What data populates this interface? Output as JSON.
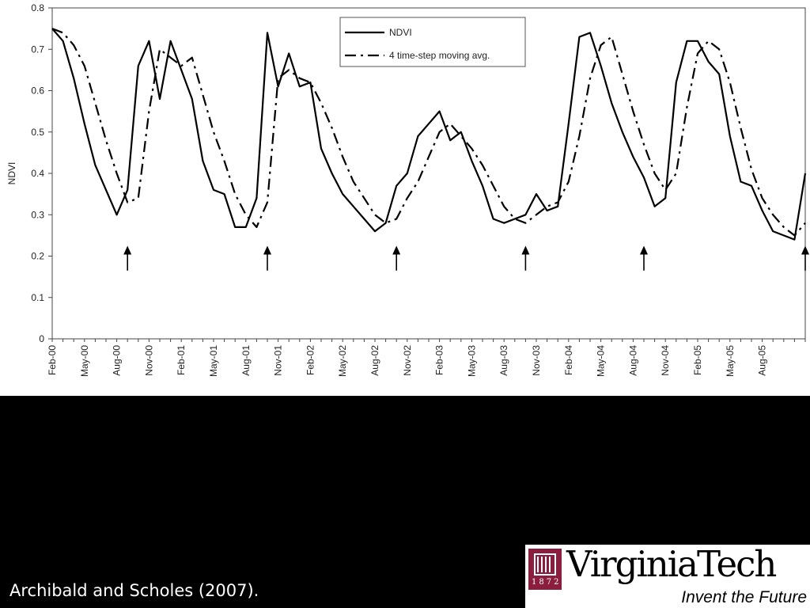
{
  "chart_data": {
    "type": "line",
    "ylabel": "NDVI",
    "ylim": [
      0,
      0.8
    ],
    "y_ticks": [
      "0",
      "0.1",
      "0.2",
      "0.3",
      "0.4",
      "0.5",
      "0.6",
      "0.7",
      "0.8"
    ],
    "x_tick_labels": [
      "Feb-00",
      "May-00",
      "Aug-00",
      "Nov-00",
      "Feb-01",
      "May-01",
      "Aug-01",
      "Nov-01",
      "Feb-02",
      "May-02",
      "Aug-02",
      "Nov-02",
      "Feb-03",
      "May-03",
      "Aug-03",
      "Nov-03",
      "Feb-04",
      "May-04",
      "Aug-04",
      "Nov-04",
      "Feb-05",
      "May-05",
      "Aug-05"
    ],
    "x_dates": [
      "2000-02",
      "2000-03",
      "2000-04",
      "2000-05",
      "2000-06",
      "2000-07",
      "2000-08",
      "2000-09",
      "2000-10",
      "2000-11",
      "2000-12",
      "2001-01",
      "2001-02",
      "2001-03",
      "2001-04",
      "2001-05",
      "2001-06",
      "2001-07",
      "2001-08",
      "2001-09",
      "2001-10",
      "2001-11",
      "2001-12",
      "2002-01",
      "2002-02",
      "2002-03",
      "2002-04",
      "2002-05",
      "2002-06",
      "2002-07",
      "2002-08",
      "2002-09",
      "2002-10",
      "2002-11",
      "2002-12",
      "2003-01",
      "2003-02",
      "2003-03",
      "2003-04",
      "2003-05",
      "2003-06",
      "2003-07",
      "2003-08",
      "2003-09",
      "2003-10",
      "2003-11",
      "2003-12",
      "2004-01",
      "2004-02",
      "2004-03",
      "2004-04",
      "2004-05",
      "2004-06",
      "2004-07",
      "2004-08",
      "2004-09",
      "2004-10",
      "2004-11",
      "2004-12",
      "2005-01",
      "2005-02",
      "2005-03",
      "2005-04",
      "2005-05",
      "2005-06",
      "2005-07",
      "2005-08",
      "2005-09",
      "2005-10",
      "2005-11",
      "2005-12"
    ],
    "series": [
      {
        "name": "NDVI",
        "style": "solid",
        "values": [
          0.75,
          0.72,
          0.63,
          0.52,
          0.42,
          0.36,
          0.3,
          0.36,
          0.66,
          0.72,
          0.58,
          0.72,
          0.65,
          0.58,
          0.43,
          0.36,
          0.35,
          0.27,
          0.27,
          0.34,
          0.74,
          0.61,
          0.69,
          0.61,
          0.62,
          0.46,
          0.4,
          0.35,
          0.32,
          0.29,
          0.26,
          0.28,
          0.37,
          0.4,
          0.49,
          0.52,
          0.55,
          0.48,
          0.5,
          0.43,
          0.37,
          0.29,
          0.28,
          0.29,
          0.3,
          0.35,
          0.31,
          0.32,
          0.52,
          0.73,
          0.74,
          0.66,
          0.57,
          0.5,
          0.44,
          0.39,
          0.32,
          0.34,
          0.62,
          0.72,
          0.72,
          0.67,
          0.64,
          0.49,
          0.38,
          0.37,
          0.31,
          0.26,
          0.25,
          0.24,
          0.4
        ]
      },
      {
        "name": "4 time-step moving avg.",
        "style": "dashdot",
        "values": [
          0.75,
          0.74,
          0.71,
          0.66,
          0.57,
          0.48,
          0.4,
          0.33,
          0.34,
          0.55,
          0.7,
          0.68,
          0.66,
          0.68,
          0.59,
          0.5,
          0.43,
          0.35,
          0.3,
          0.27,
          0.33,
          0.63,
          0.65,
          0.63,
          0.62,
          0.57,
          0.51,
          0.44,
          0.38,
          0.34,
          0.3,
          0.28,
          0.29,
          0.34,
          0.38,
          0.44,
          0.5,
          0.52,
          0.49,
          0.46,
          0.42,
          0.37,
          0.32,
          0.29,
          0.28,
          0.3,
          0.32,
          0.33,
          0.38,
          0.49,
          0.63,
          0.71,
          0.73,
          0.64,
          0.55,
          0.47,
          0.4,
          0.36,
          0.4,
          0.56,
          0.69,
          0.72,
          0.7,
          0.62,
          0.51,
          0.41,
          0.34,
          0.3,
          0.27,
          0.25,
          0.28
        ]
      }
    ],
    "legend_position": "top-center",
    "arrows_at": [
      "2000-09",
      "2001-10",
      "2002-10",
      "2003-10",
      "2004-09",
      "2005-12"
    ],
    "grid": false
  },
  "footer": {
    "citation": "Archibald and Scholes (2007)."
  },
  "logo": {
    "wordmark": "VirginiaTech",
    "tagline": "Invent the Future",
    "shield_year": "1872",
    "brand_color": "#8b1e3f"
  }
}
